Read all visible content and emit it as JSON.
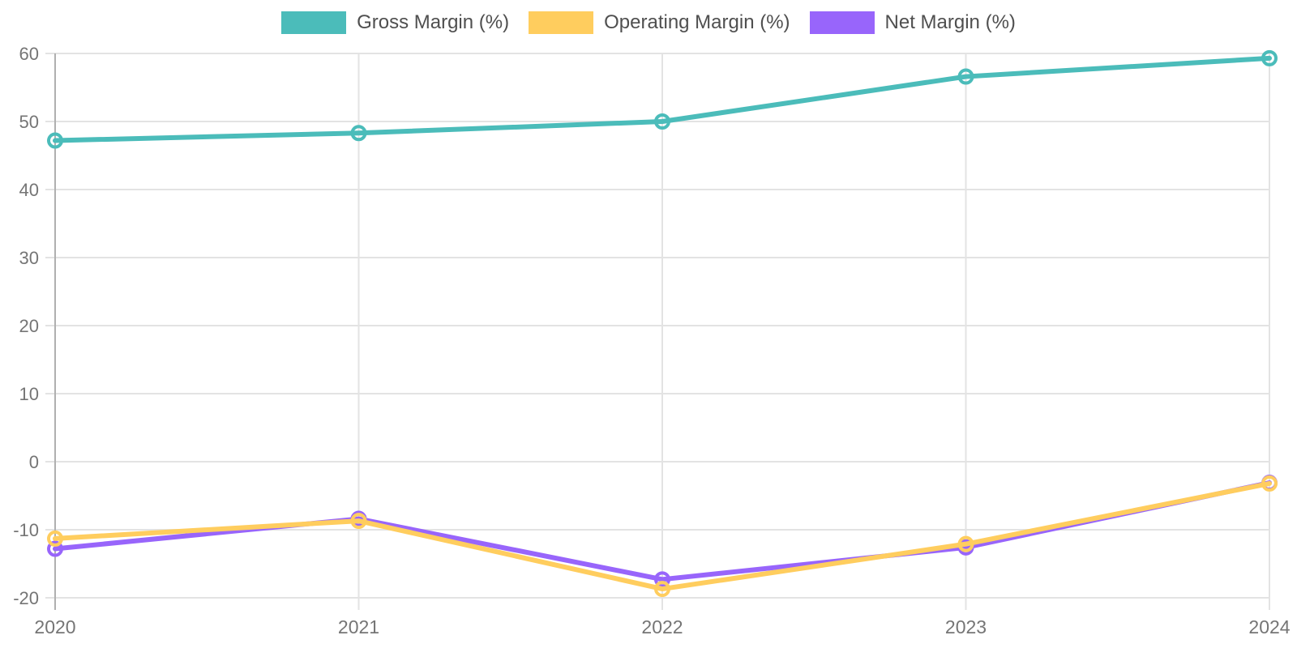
{
  "theme": {
    "background": "#ffffff",
    "grid_color": "#e3e3e3",
    "axis_color": "#b0b0b0",
    "tick_label_color": "#757575",
    "legend_label_color": "#4f4f4f"
  },
  "chart_data": {
    "type": "line",
    "title": "",
    "xlabel": "",
    "ylabel": "",
    "x": [
      "2020",
      "2021",
      "2022",
      "2023",
      "2024"
    ],
    "series": [
      {
        "name": "Gross Margin (%)",
        "color": "#4bbcba",
        "values": [
          47.2,
          48.3,
          50.0,
          56.6,
          59.3
        ]
      },
      {
        "name": "Operating Margin (%)",
        "color": "#ffcd5e",
        "values": [
          -11.3,
          -8.7,
          -18.7,
          -12.1,
          -3.2
        ]
      },
      {
        "name": "Net Margin (%)",
        "color": "#9865fb",
        "values": [
          -12.8,
          -8.4,
          -17.3,
          -12.6,
          -3.1
        ]
      }
    ],
    "ylim": [
      -20,
      60
    ],
    "yticks": [
      "-20",
      "-10",
      "0",
      "10",
      "20",
      "30",
      "40",
      "50",
      "60"
    ],
    "ytick_values": [
      -20,
      -10,
      0,
      10,
      20,
      30,
      40,
      50,
      60
    ],
    "grid": true,
    "legend_position": "top-center",
    "draw_order": [
      0,
      2,
      1
    ],
    "marker": "open-circle",
    "line_width": 6,
    "marker_radius": 8,
    "marker_stroke_width": 4
  }
}
